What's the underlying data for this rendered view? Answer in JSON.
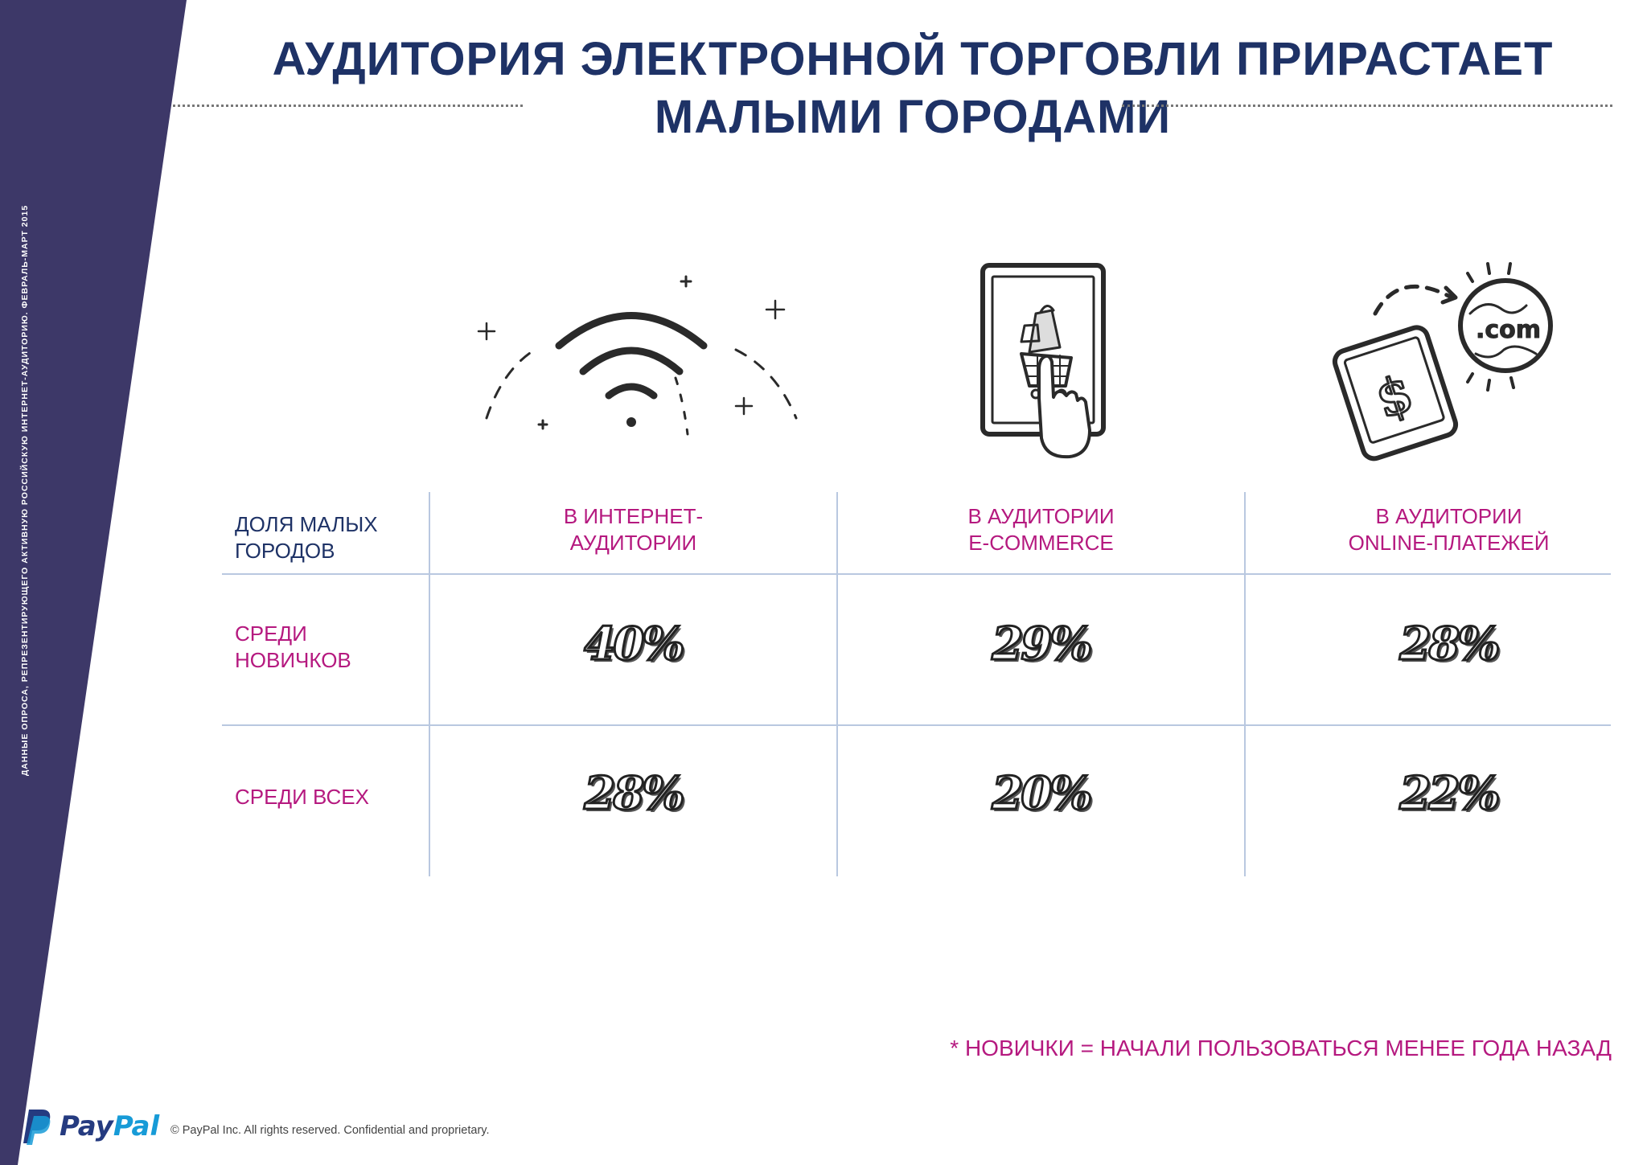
{
  "slide": {
    "title_line1": "АУДИТОРИЯ ЭЛЕКТРОННОЙ ТОРГОВЛИ ПРИРАСТАЕТ",
    "title_line2": "МАЛЫМИ ГОРОДАМИ",
    "side_note": "ДАННЫЕ ОПРОСА, РЕПРЕЗЕНТИРУЮЩЕГО АКТИВНУЮ РОССИЙСКУЮ ИНТЕРНЕТ-АУДИТОРИЮ. ФЕВРАЛЬ-МАРТ 2015",
    "colors": {
      "band": "#3d3868",
      "title": "#1e3266",
      "accent": "#b5197f"
    }
  },
  "table": {
    "corner_label_line1": "ДОЛЯ МАЛЫХ",
    "corner_label_line2": "ГОРОДОВ",
    "columns": [
      {
        "icon": "wifi-icon",
        "label_line1": "В ИНТЕРНЕТ-",
        "label_line2": "АУДИТОРИИ"
      },
      {
        "icon": "tablet-shopping-cart-icon",
        "label_line1": "В АУДИТОРИИ",
        "label_line2": "E-COMMERCE"
      },
      {
        "icon": "tablet-dollar-globe-icon",
        "label_line1": "В АУДИТОРИИ",
        "label_line2": "ONLINE-ПЛАТЕЖЕЙ"
      }
    ],
    "rows": [
      {
        "label_line1": "СРЕДИ",
        "label_line2": "НОВИЧКОВ",
        "values": [
          "40%",
          "29%",
          "28%"
        ]
      },
      {
        "label_line1": "СРЕДИ ВСЕХ",
        "label_line2": "",
        "values": [
          "28%",
          "20%",
          "22%"
        ]
      }
    ]
  },
  "footnote": "* НОВИЧКИ = НАЧАЛИ ПОЛЬЗОВАТЬСЯ МЕНЕЕ ГОДА НАЗАД",
  "footer": {
    "logo_pay": "Pay",
    "logo_pal": "Pal",
    "copyright": "© PayPal Inc. All rights reserved. Confidential and proprietary."
  }
}
